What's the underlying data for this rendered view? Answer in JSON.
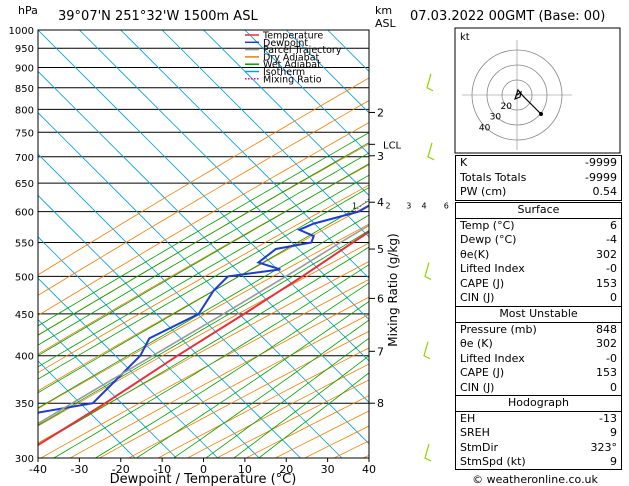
{
  "header": {
    "hpa_label": "hPa",
    "location": "39°07'N 251°32'W 1500m ASL",
    "km_label": "km",
    "asl_label": "ASL",
    "datetime": "07.03.2022 00GMT (Base: 00)"
  },
  "legend": [
    {
      "label": "Temperature",
      "color": "#e8303a",
      "style": "solid"
    },
    {
      "label": "Dewpoint",
      "color": "#1e3ccf",
      "style": "solid"
    },
    {
      "label": "Parcel Trajectory",
      "color": "#999999",
      "style": "solid"
    },
    {
      "label": "Dry Adiabat",
      "color": "#f08000",
      "style": "solid"
    },
    {
      "label": "Wet Adiabat",
      "color": "#00a000",
      "style": "solid"
    },
    {
      "label": "Isotherm",
      "color": "#00a0e0",
      "style": "solid"
    },
    {
      "label": "Mixing Ratio",
      "color": "#e000a0",
      "style": "dotted"
    }
  ],
  "chart_data": {
    "type": "line",
    "title": "Skew-T log-P",
    "xlabel": "Dewpoint / Temperature (°C)",
    "ylabel": "hPa",
    "right_ylabel": "Mixing Ratio (g/kg)",
    "xlim": [
      -40,
      40
    ],
    "ylim": [
      1000,
      300
    ],
    "x_ticks": [
      -40,
      -30,
      -20,
      -10,
      0,
      10,
      20,
      30,
      40
    ],
    "pressure_levels": [
      300,
      350,
      400,
      450,
      500,
      550,
      600,
      650,
      700,
      750,
      800,
      850,
      900,
      950,
      1000
    ],
    "km_ticks": [
      {
        "km": "8",
        "p": 350
      },
      {
        "km": "7",
        "p": 405
      },
      {
        "km": "6",
        "p": 470
      },
      {
        "km": "5",
        "p": 540
      },
      {
        "km": "4",
        "p": 616
      },
      {
        "km": "3",
        "p": 702
      },
      {
        "km": "2",
        "p": 793
      }
    ],
    "lcl": {
      "label": "LCL",
      "p": 725
    },
    "mixing_ratio_labels": [
      "1",
      "2",
      "3",
      "4",
      "6",
      "8",
      "10",
      "15",
      "20",
      "25"
    ],
    "mixing_ratios": [
      1,
      2,
      3,
      4,
      6,
      8,
      10,
      15,
      20,
      25
    ],
    "series": [
      {
        "name": "Temperature",
        "color": "#e8303a",
        "points": [
          [
            848,
            6
          ],
          [
            800,
            2
          ],
          [
            750,
            -2
          ],
          [
            700,
            -5
          ],
          [
            650,
            -8
          ],
          [
            600,
            -12
          ],
          [
            550,
            -16
          ],
          [
            500,
            -20
          ],
          [
            450,
            -25
          ],
          [
            400,
            -31
          ],
          [
            350,
            -37
          ],
          [
            300,
            -45
          ]
        ]
      },
      {
        "name": "Dewpoint",
        "color": "#1e3ccf",
        "points": [
          [
            848,
            -4
          ],
          [
            830,
            -8
          ],
          [
            800,
            -10
          ],
          [
            750,
            -11
          ],
          [
            700,
            -12
          ],
          [
            650,
            -13
          ],
          [
            630,
            -18
          ],
          [
            610,
            -21
          ],
          [
            600,
            -22
          ],
          [
            580,
            -30
          ],
          [
            570,
            -32
          ],
          [
            560,
            -27
          ],
          [
            550,
            -26
          ],
          [
            540,
            -33
          ],
          [
            520,
            -34
          ],
          [
            510,
            -27
          ],
          [
            500,
            -38
          ],
          [
            480,
            -38
          ],
          [
            450,
            -36
          ],
          [
            420,
            -42
          ],
          [
            400,
            -40
          ],
          [
            370,
            -40
          ],
          [
            350,
            -40
          ],
          [
            340,
            -52
          ],
          [
            330,
            -56
          ],
          [
            300,
            -60
          ]
        ]
      },
      {
        "name": "Parcel Trajectory",
        "color": "#999999",
        "points": [
          [
            848,
            6
          ],
          [
            800,
            1.5
          ],
          [
            725,
            -5
          ],
          [
            700,
            -6.5
          ],
          [
            650,
            -10
          ],
          [
            600,
            -14
          ],
          [
            550,
            -19
          ],
          [
            500,
            -24
          ],
          [
            450,
            -30
          ],
          [
            400,
            -37
          ],
          [
            350,
            -45
          ],
          [
            300,
            -54
          ]
        ]
      }
    ]
  },
  "hodograph": {
    "unit_label": "kt",
    "ring_labels": [
      "20",
      "30",
      "40"
    ]
  },
  "indices": {
    "k_label": "K",
    "k_value": "-9999",
    "tt_label": "Totals Totals",
    "tt_value": "-9999",
    "pw_label": "PW (cm)",
    "pw_value": "0.54"
  },
  "surface": {
    "title": "Surface",
    "temp_label": "Temp (°C)",
    "temp_value": "6",
    "dewp_label": "Dewp (°C)",
    "dewp_value": "-4",
    "theta_label": "θe(K)",
    "theta_value": "302",
    "li_label": "Lifted Index",
    "li_value": "-0",
    "cape_label": "CAPE (J)",
    "cape_value": "153",
    "cin_label": "CIN (J)",
    "cin_value": "0"
  },
  "most_unstable": {
    "title": "Most Unstable",
    "pres_label": "Pressure (mb)",
    "pres_value": "848",
    "theta_label": "θe (K)",
    "theta_value": "302",
    "li_label": "Lifted Index",
    "li_value": "-0",
    "cape_label": "CAPE (J)",
    "cape_value": "153",
    "cin_label": "CIN (J)",
    "cin_value": "0"
  },
  "hodo_params": {
    "title": "Hodograph",
    "eh_label": "EH",
    "eh_value": "-13",
    "sreh_label": "SREH",
    "sreh_value": "9",
    "stmdir_label": "StmDir",
    "stmdir_value": "323°",
    "stmspd_label": "StmSpd (kt)",
    "stmspd_value": "9"
  },
  "footer": {
    "credit": "© weatheronline.co.uk"
  }
}
